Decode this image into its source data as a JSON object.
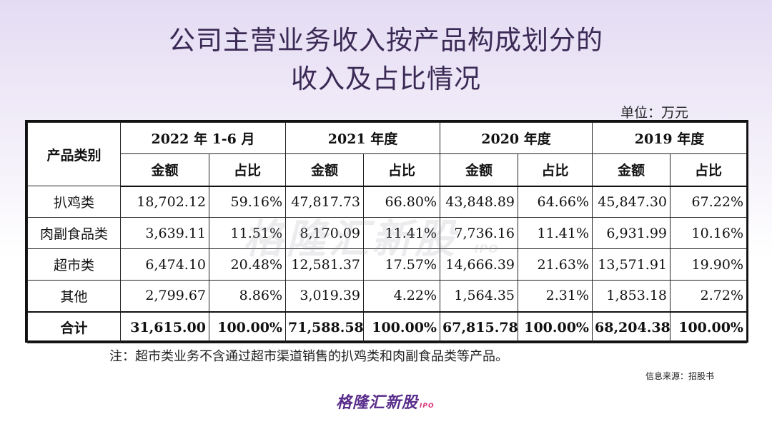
{
  "title": {
    "line1": "公司主营业务收入按产品构成划分的",
    "line2": "收入及占比情况"
  },
  "unit": "单位：万元",
  "table": {
    "category_header": "产品类别",
    "periods": [
      "2022 年 1-6 月",
      "2021 年度",
      "2020 年度",
      "2019 年度"
    ],
    "amount_label": "金额",
    "ratio_label": "占比",
    "rows": [
      {
        "name": "扒鸡类",
        "cells": [
          "18,702.12",
          "59.16%",
          "47,817.73",
          "66.80%",
          "43,848.89",
          "64.66%",
          "45,847.30",
          "67.22%"
        ]
      },
      {
        "name": "肉副食品类",
        "cells": [
          "3,639.11",
          "11.51%",
          "8,170.09",
          "11.41%",
          "7,736.16",
          "11.41%",
          "6,931.99",
          "10.16%"
        ]
      },
      {
        "name": "超市类",
        "cells": [
          "6,474.10",
          "20.48%",
          "12,581.37",
          "17.57%",
          "14,666.39",
          "21.63%",
          "13,571.91",
          "19.90%"
        ]
      },
      {
        "name": "其他",
        "cells": [
          "2,799.67",
          "8.86%",
          "3,019.39",
          "4.22%",
          "1,564.35",
          "2.31%",
          "1,853.18",
          "2.72%"
        ]
      }
    ],
    "total": {
      "name": "合计",
      "cells": [
        "31,615.00",
        "100.00%",
        "71,588.58",
        "100.00%",
        "67,815.78",
        "100.00%",
        "68,204.38",
        "100.00%"
      ]
    }
  },
  "note": "注：超市类业务不含通过超市渠道销售的扒鸡类和肉副食品类等产品。",
  "source": "信息来源：招股书",
  "watermark": {
    "text": "格隆汇新股",
    "suffix": "IPO"
  },
  "logo": {
    "text": "格隆汇新股",
    "suffix": "IPO"
  },
  "colors": {
    "title": "#3a2a55",
    "logo": "#5a2e8c",
    "logo_accent": "#d8357a"
  }
}
